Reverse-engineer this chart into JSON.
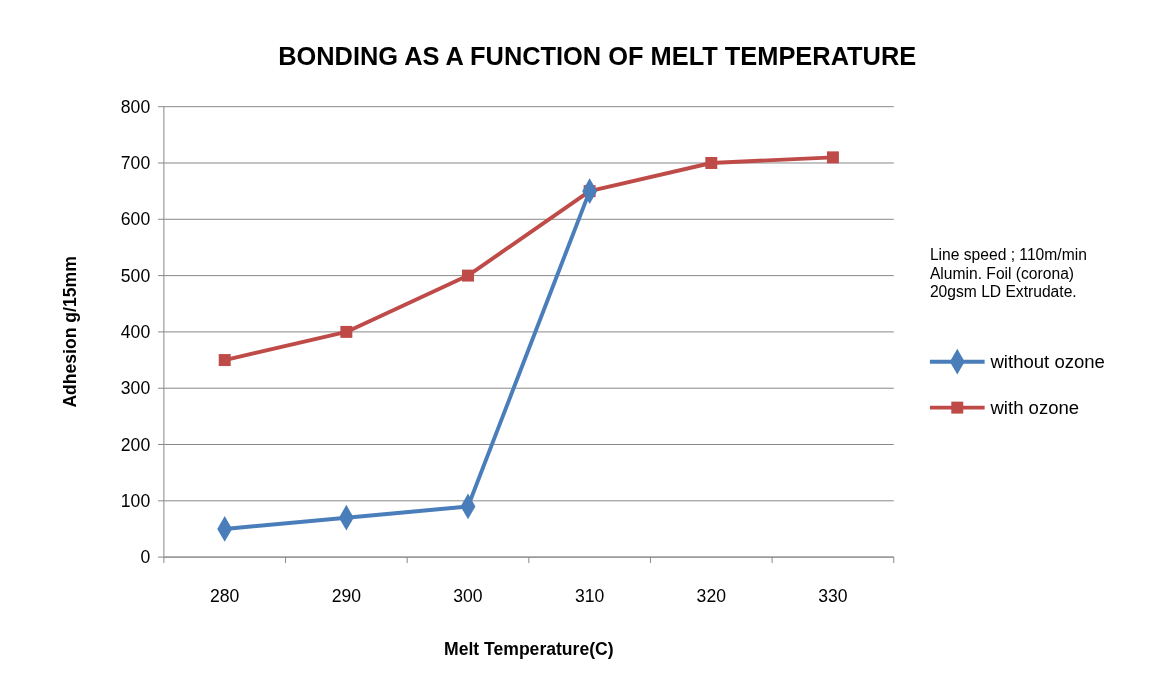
{
  "chart_data": {
    "type": "line",
    "title": "BONDING AS A FUNCTION OF MELT TEMPERATURE",
    "xlabel": "Melt Temperature(C)",
    "ylabel": "Adhesion g/15mm",
    "categories": [
      "280",
      "290",
      "300",
      "310",
      "320",
      "330"
    ],
    "series": [
      {
        "name": "without ozone",
        "color": "#4a7ebb",
        "marker": "diamond",
        "values": [
          50,
          70,
          90,
          650,
          null,
          null
        ]
      },
      {
        "name": "with ozone",
        "color": "#be4b48",
        "marker": "square",
        "values": [
          350,
          400,
          500,
          650,
          700,
          710
        ]
      }
    ],
    "ylim": [
      0,
      800
    ],
    "yticks": [
      0,
      100,
      200,
      300,
      400,
      500,
      600,
      700,
      800
    ],
    "grid": "y",
    "legend": "right",
    "line_style": "solid",
    "annotations": [
      "Line speed ; 110m/min",
      "Alumin. Foil (corona)",
      "20gsm LD Extrudate."
    ]
  }
}
